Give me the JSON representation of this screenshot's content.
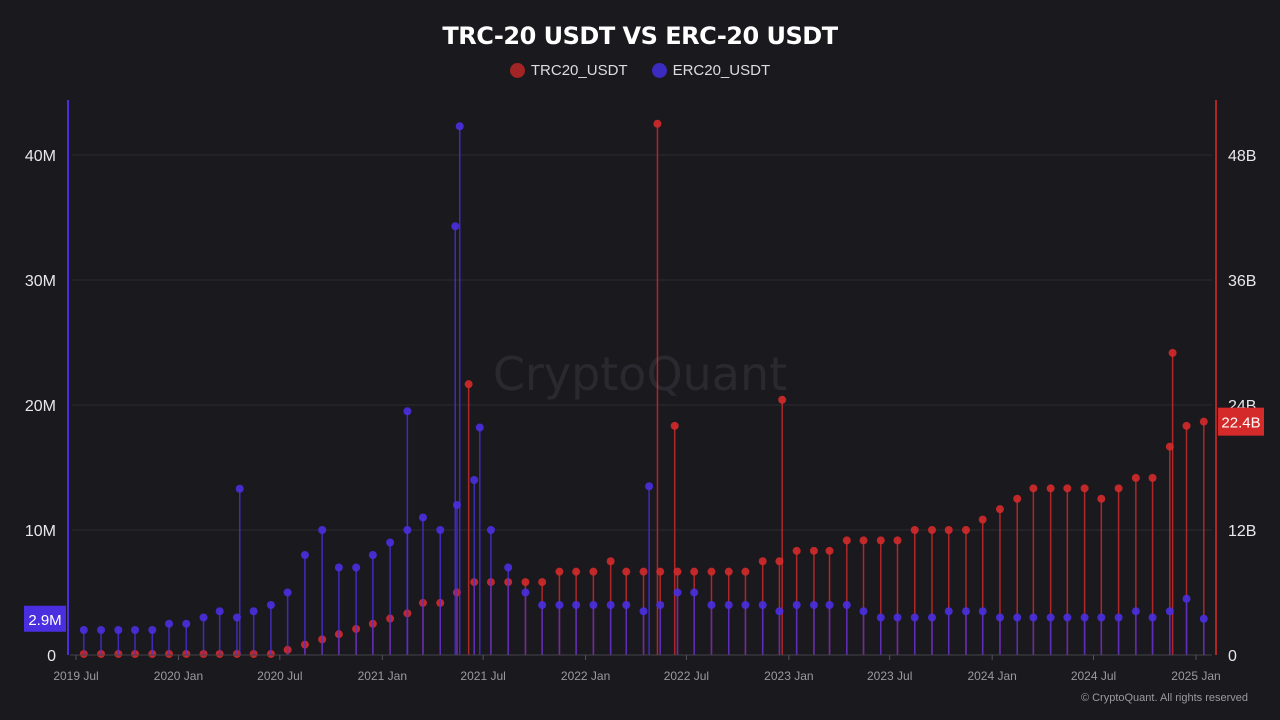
{
  "chart_data": {
    "type": "scatter",
    "style": "lollipop",
    "title": "TRC-20 USDT VS ERC-20 USDT",
    "watermark": "CryptoQuant",
    "copyright": "© CryptoQuant. All rights reserved",
    "legend_position": "top-center",
    "grid": true,
    "x_ticks": [
      "2019 Jul",
      "2020 Jan",
      "2020 Jul",
      "2021 Jan",
      "2021 Jul",
      "2022 Jan",
      "2022 Jul",
      "2023 Jan",
      "2023 Jul",
      "2024 Jan",
      "2024 Jul",
      "2025 Jan"
    ],
    "x_range": [
      "2019-07-01",
      "2025-01-15"
    ],
    "left_axis": {
      "series": "ERC20_USDT",
      "ylim": [
        0,
        44500000
      ],
      "ticks": [
        "0",
        "10M",
        "20M",
        "30M",
        "40M"
      ],
      "tick_values": [
        0,
        10000000,
        20000000,
        30000000,
        40000000
      ],
      "latest_label": "2.9M",
      "latest_value": 2900000
    },
    "right_axis": {
      "series": "TRC20_USDT",
      "ylim": [
        0,
        53400000000
      ],
      "ticks": [
        "0",
        "12B",
        "24B",
        "36B",
        "48B"
      ],
      "tick_values": [
        0,
        12000000000,
        24000000000,
        36000000000,
        48000000000
      ],
      "latest_label": "22.4B",
      "latest_value": 22400000000
    },
    "months": [
      "2019-07",
      "2019-08",
      "2019-09",
      "2019-10",
      "2019-11",
      "2019-12",
      "2020-01",
      "2020-02",
      "2020-03",
      "2020-04",
      "2020-05",
      "2020-06",
      "2020-07",
      "2020-08",
      "2020-09",
      "2020-10",
      "2020-11",
      "2020-12",
      "2021-01",
      "2021-02",
      "2021-03",
      "2021-04",
      "2021-05",
      "2021-06",
      "2021-07",
      "2021-08",
      "2021-09",
      "2021-10",
      "2021-11",
      "2021-12",
      "2022-01",
      "2022-02",
      "2022-03",
      "2022-04",
      "2022-05",
      "2022-06",
      "2022-07",
      "2022-08",
      "2022-09",
      "2022-10",
      "2022-11",
      "2022-12",
      "2023-01",
      "2023-02",
      "2023-03",
      "2023-04",
      "2023-05",
      "2023-06",
      "2023-07",
      "2023-08",
      "2023-09",
      "2023-10",
      "2023-11",
      "2023-12",
      "2024-01",
      "2024-02",
      "2024-03",
      "2024-04",
      "2024-05",
      "2024-06",
      "2024-07",
      "2024-08",
      "2024-09",
      "2024-10",
      "2024-11",
      "2024-12",
      "2025-01"
    ],
    "series": [
      {
        "name": "TRC20_USDT",
        "axis": "right",
        "color": "#d42a2a",
        "unit": "USD",
        "values": [
          100000000.0,
          100000000.0,
          100000000.0,
          100000000.0,
          100000000.0,
          100000000.0,
          100000000.0,
          100000000.0,
          100000000.0,
          100000000.0,
          100000000.0,
          100000000.0,
          500000000.0,
          1000000000.0,
          1500000000.0,
          2000000000.0,
          2500000000.0,
          3000000000.0,
          3500000000.0,
          4000000000.0,
          5000000000.0,
          5000000000.0,
          6000000000.0,
          7000000000.0,
          7000000000.0,
          7000000000.0,
          7000000000.0,
          7000000000.0,
          8000000000.0,
          8000000000.0,
          8000000000.0,
          9000000000.0,
          8000000000.0,
          8000000000.0,
          8000000000.0,
          8000000000.0,
          8000000000.0,
          8000000000.0,
          8000000000.0,
          8000000000.0,
          9000000000.0,
          9000000000.0,
          10000000000.0,
          10000000000.0,
          10000000000.0,
          11000000000.0,
          11000000000.0,
          11000000000.0,
          11000000000.0,
          12000000000.0,
          12000000000.0,
          12000000000.0,
          12000000000.0,
          13000000000.0,
          14000000000.0,
          15000000000.0,
          16000000000.0,
          16000000000.0,
          16000000000.0,
          16000000000.0,
          15000000000.0,
          16000000000.0,
          17000000000.0,
          17000000000.0,
          20000000000.0,
          22000000000.0,
          22400000000.0
        ],
        "spikes": [
          {
            "date": "2021-06-05",
            "value": 26000000000.0
          },
          {
            "date": "2022-05-10",
            "value": 51000000000.0
          },
          {
            "date": "2022-06-10",
            "value": 22000000000.0
          },
          {
            "date": "2022-12-20",
            "value": 24500000000.0
          },
          {
            "date": "2024-11-20",
            "value": 29000000000.0
          }
        ]
      },
      {
        "name": "ERC20_USDT",
        "axis": "left",
        "color": "#4a2fe0",
        "unit": "USD",
        "values": [
          2000000.0,
          2000000.0,
          2000000.0,
          2000000.0,
          2000000.0,
          2500000.0,
          2500000.0,
          3000000.0,
          3500000.0,
          3000000.0,
          3500000.0,
          4000000.0,
          5000000.0,
          8000000.0,
          10000000.0,
          7000000.0,
          7000000.0,
          8000000.0,
          9000000.0,
          10000000.0,
          11000000.0,
          10000000.0,
          12000000.0,
          14000000.0,
          10000000.0,
          7000000.0,
          5000000.0,
          4000000.0,
          4000000.0,
          4000000.0,
          4000000.0,
          4000000.0,
          4000000.0,
          3500000.0,
          4000000.0,
          5000000.0,
          5000000.0,
          4000000.0,
          4000000.0,
          4000000.0,
          4000000.0,
          3500000.0,
          4000000.0,
          4000000.0,
          4000000.0,
          4000000.0,
          3500000.0,
          3000000.0,
          3000000.0,
          3000000.0,
          3000000.0,
          3500000.0,
          3500000.0,
          3500000.0,
          3000000.0,
          3000000.0,
          3000000.0,
          3000000.0,
          3000000.0,
          3000000.0,
          3000000.0,
          3000000.0,
          3500000.0,
          3000000.0,
          3500000.0,
          4500000.0,
          2900000.0
        ],
        "spikes": [
          {
            "date": "2020-04-20",
            "value": 13300000.0
          },
          {
            "date": "2021-02-15",
            "value": 19500000.0
          },
          {
            "date": "2021-05-12",
            "value": 34300000.0
          },
          {
            "date": "2021-05-20",
            "value": 42300000.0
          },
          {
            "date": "2021-06-25",
            "value": 18200000.0
          },
          {
            "date": "2022-04-25",
            "value": 13500000.0
          }
        ]
      }
    ]
  }
}
